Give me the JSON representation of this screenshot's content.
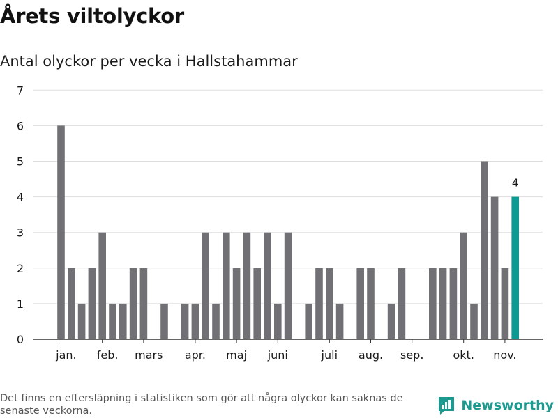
{
  "header": {
    "title": "Årets viltolyckor",
    "subtitle": "Antal olyckor per vecka i Hallstahammar"
  },
  "footer": {
    "note": "Det finns en eftersläpning i statistiken som gör att några olyckor kan saknas de senaste veckorna.",
    "brand": "Newsworthy"
  },
  "colors": {
    "bar": "#717075",
    "highlight": "#0d9a92",
    "grid": "#dddddd",
    "axis": "#333333",
    "brand": "#1c9a8f"
  },
  "chart_data": {
    "type": "bar",
    "title": "Årets viltolyckor",
    "subtitle": "Antal olyckor per vecka i Hallstahammar",
    "xlabel": "",
    "ylabel": "",
    "ylim": [
      0,
      7
    ],
    "yticks": [
      0,
      1,
      2,
      3,
      4,
      5,
      6,
      7
    ],
    "grid": true,
    "categories": [
      1,
      2,
      3,
      4,
      5,
      6,
      7,
      8,
      9,
      10,
      11,
      12,
      13,
      14,
      15,
      16,
      17,
      18,
      19,
      20,
      21,
      22,
      23,
      24,
      25,
      26,
      27,
      28,
      29,
      30,
      31,
      32,
      33,
      34,
      35,
      36,
      37,
      38,
      39,
      40,
      41,
      42,
      43,
      44,
      45
    ],
    "values": [
      6,
      2,
      1,
      2,
      3,
      1,
      1,
      2,
      2,
      0,
      1,
      0,
      1,
      1,
      3,
      1,
      3,
      2,
      3,
      2,
      3,
      1,
      3,
      0,
      1,
      2,
      2,
      1,
      0,
      2,
      2,
      0,
      1,
      2,
      0,
      0,
      2,
      2,
      2,
      3,
      1,
      5,
      4,
      2,
      4
    ],
    "highlight_index": 44,
    "data_labels": [
      {
        "index": 44,
        "text": "4"
      }
    ],
    "month_labels": [
      {
        "label": "jan.",
        "week": 1.5
      },
      {
        "label": "feb.",
        "week": 5.5
      },
      {
        "label": "mars",
        "week": 9.5
      },
      {
        "label": "apr.",
        "week": 14
      },
      {
        "label": "maj",
        "week": 18
      },
      {
        "label": "juni",
        "week": 22
      },
      {
        "label": "juli",
        "week": 27
      },
      {
        "label": "aug.",
        "week": 31
      },
      {
        "label": "sep.",
        "week": 35
      },
      {
        "label": "okt.",
        "week": 40
      },
      {
        "label": "nov.",
        "week": 44
      }
    ],
    "month_ticks": [
      1,
      5,
      9,
      14,
      18,
      22,
      27,
      31,
      35,
      40,
      44
    ]
  }
}
